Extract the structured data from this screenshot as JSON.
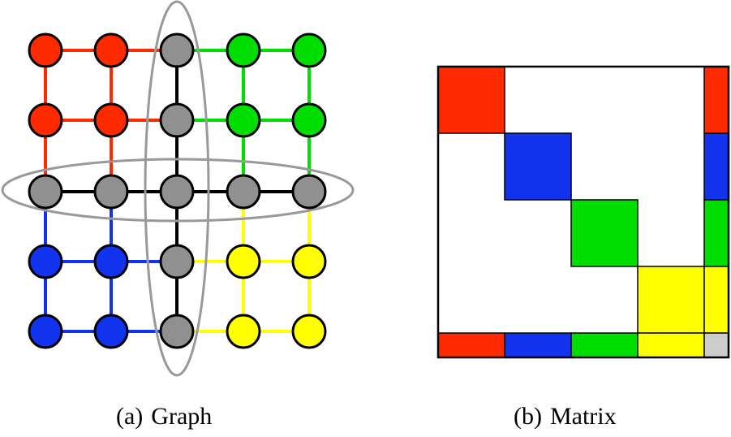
{
  "colors": {
    "red": "#ff2a00",
    "blue": "#1133ee",
    "green": "#00dd00",
    "yellow": "#ffff00",
    "gray": "#909090",
    "light_gray": "#cccccc",
    "separator": "#000000",
    "ellipse": "#999999"
  },
  "graph": {
    "caption_tag": "(a)",
    "caption_label": "Graph",
    "rows": 5,
    "cols": 5,
    "separator_row": 2,
    "separator_col": 2,
    "node_colors": [
      [
        "red",
        "red",
        "gray",
        "green",
        "green"
      ],
      [
        "red",
        "red",
        "gray",
        "green",
        "green"
      ],
      [
        "gray",
        "gray",
        "gray",
        "gray",
        "gray"
      ],
      [
        "blue",
        "blue",
        "gray",
        "yellow",
        "yellow"
      ],
      [
        "blue",
        "blue",
        "gray",
        "yellow",
        "yellow"
      ]
    ]
  },
  "matrix": {
    "caption_tag": "(b)",
    "caption_label": "Matrix",
    "block_colors": [
      "red",
      "blue",
      "green",
      "yellow"
    ],
    "corner_color": "light_gray"
  }
}
